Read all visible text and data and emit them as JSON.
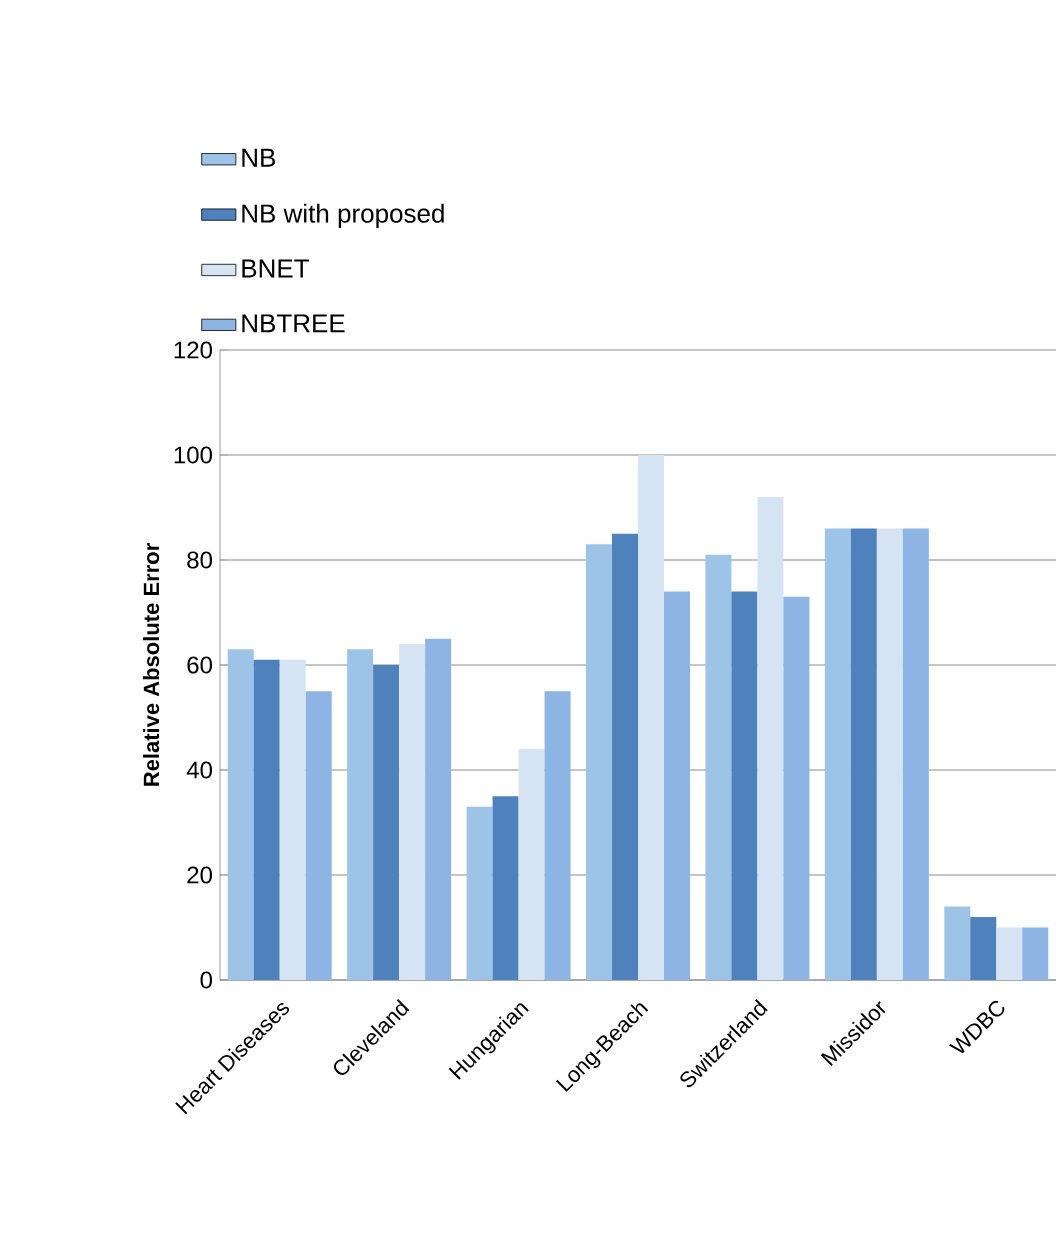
{
  "chart_data": {
    "type": "bar",
    "ylabel": "Relative Absolute Error",
    "categories": [
      "Heart Diseases",
      "Cleveland",
      "Hungarian",
      "Long-Beach",
      "Switzerland",
      "Missidor",
      "WDBC"
    ],
    "series": [
      {
        "name": "NB",
        "color": "#9dc3e6",
        "values": [
          63,
          63,
          33,
          83,
          81,
          86,
          14
        ]
      },
      {
        "name": "NB with proposed",
        "color": "#4f81bd",
        "values": [
          61,
          60,
          35,
          85,
          74,
          86,
          12
        ]
      },
      {
        "name": "BNET",
        "color": "#d6e3f3",
        "values": [
          61,
          64,
          44,
          100,
          92,
          86,
          10
        ]
      },
      {
        "name": "NBTREE",
        "color": "#8eb4e3",
        "values": [
          55,
          65,
          55,
          74,
          73,
          86,
          10
        ]
      }
    ],
    "ylim": [
      0,
      120
    ],
    "yticks": [
      0,
      20,
      40,
      60,
      80,
      100,
      120
    ],
    "grid": "y",
    "legend": "top left"
  }
}
